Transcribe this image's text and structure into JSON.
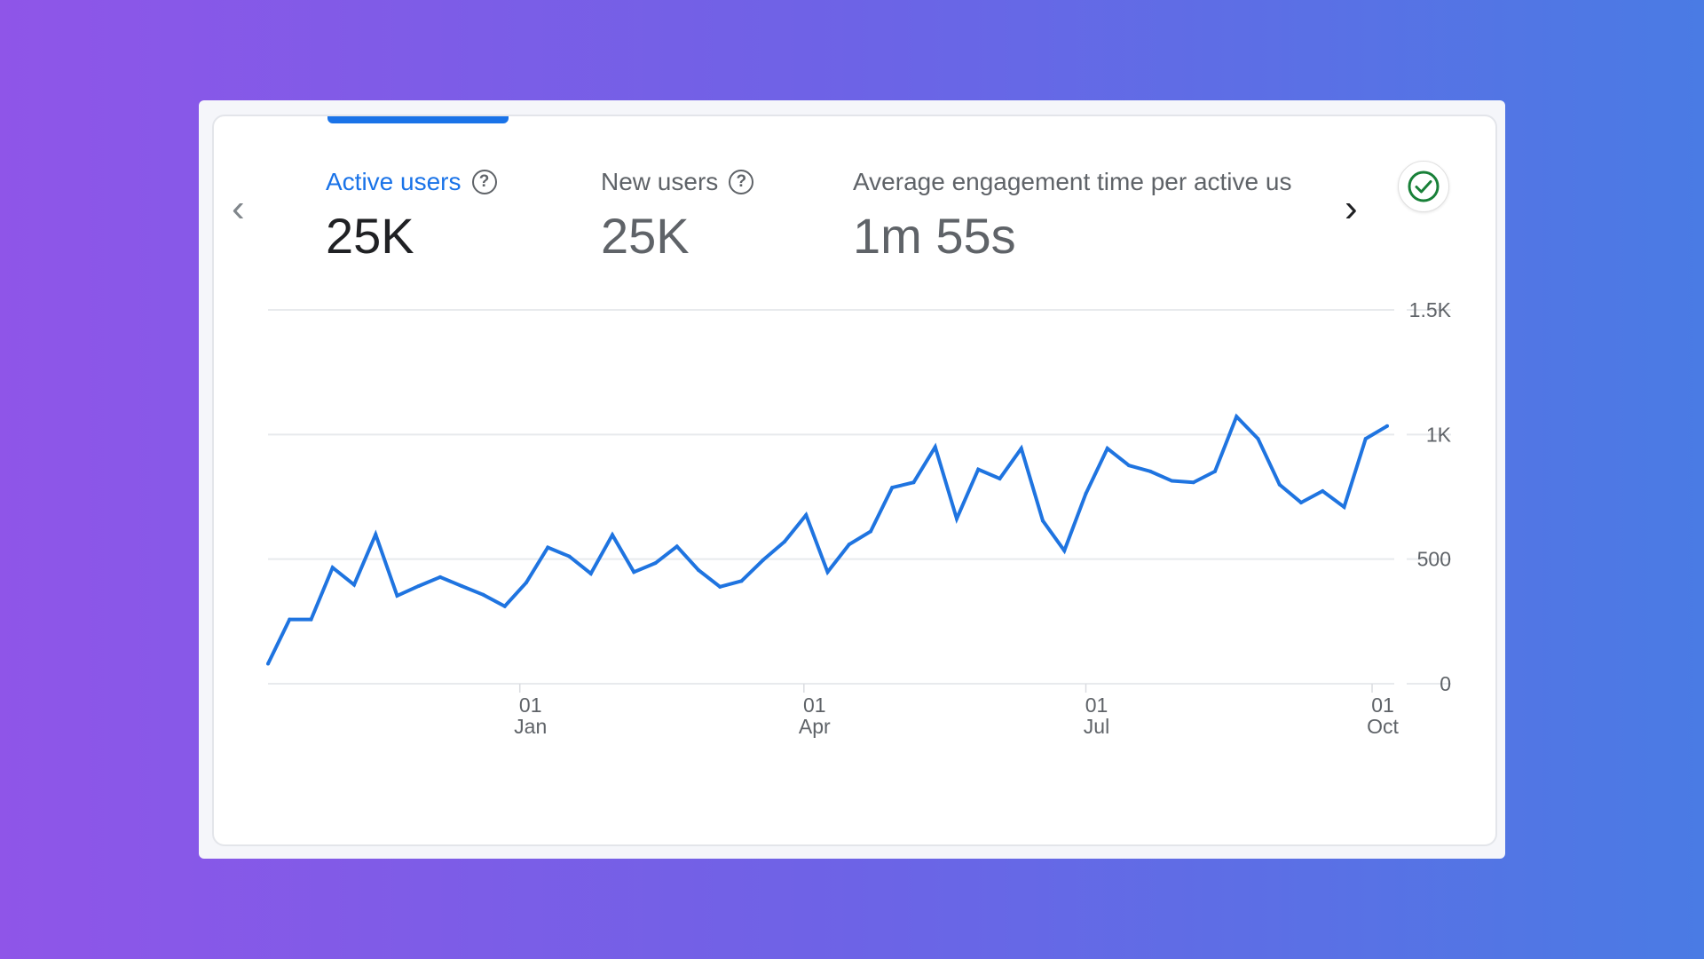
{
  "metrics": [
    {
      "label": "Active users",
      "value": "25K",
      "active": true
    },
    {
      "label": "New users",
      "value": "25K",
      "active": false
    },
    {
      "label": "Average engagement time per active us",
      "value": "1m 55s",
      "active": false
    }
  ],
  "icons": {
    "help": "question-circle-icon",
    "prev": "chevron-left-icon",
    "next": "chevron-right-icon",
    "status": "check-circle-icon"
  },
  "help_glyph": "?",
  "colors": {
    "accent": "#1a73e8",
    "line": "#1f74e0",
    "check": "#188038"
  },
  "chart_data": {
    "type": "line",
    "title": "",
    "xlabel": "",
    "ylabel": "",
    "series": [
      {
        "name": "Active users",
        "values": [
          80,
          258,
          258,
          466,
          397,
          599,
          353,
          392,
          428,
          392,
          357,
          311,
          406,
          547,
          511,
          442,
          597,
          448,
          484,
          551,
          456,
          389,
          412,
          496,
          570,
          677,
          448,
          559,
          611,
          787,
          808,
          950,
          662,
          860,
          823,
          944,
          654,
          534,
          763,
          944,
          876,
          852,
          814,
          808,
          852,
          1072,
          983,
          799,
          727,
          773,
          709,
          983,
          1034
        ]
      }
    ],
    "x_ticks": [
      {
        "pos": 11.7,
        "day": "01",
        "month": "Jan"
      },
      {
        "pos": 24.9,
        "day": "01",
        "month": "Apr"
      },
      {
        "pos": 38.0,
        "day": "01",
        "month": "Jul"
      },
      {
        "pos": 51.3,
        "day": "01",
        "month": "Oct"
      }
    ],
    "y_ticks": [
      {
        "value": 0,
        "label": "0"
      },
      {
        "value": 500,
        "label": "500"
      },
      {
        "value": 1000,
        "label": "1K"
      },
      {
        "value": 1500,
        "label": "1.5K"
      }
    ],
    "ylim": [
      0,
      1500
    ],
    "grid": true
  }
}
